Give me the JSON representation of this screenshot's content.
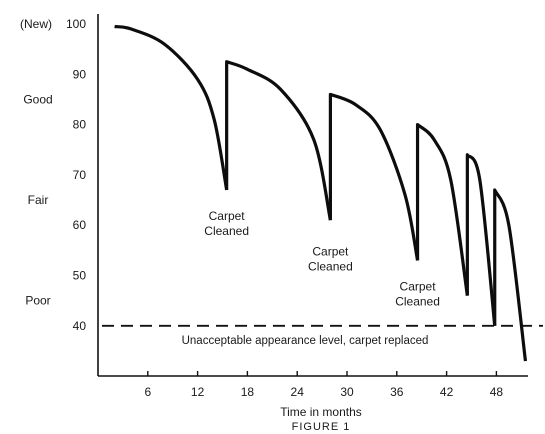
{
  "chart_data": {
    "type": "line",
    "title": "",
    "caption": "FIGURE 1",
    "xlabel": "Time in months",
    "ylabel": "",
    "xlim": [
      0,
      53
    ],
    "ylim": [
      32,
      100
    ],
    "x_ticks": [
      6,
      12,
      18,
      24,
      30,
      36,
      42,
      48
    ],
    "y_ticks": [
      40,
      50,
      60,
      70,
      80,
      90,
      100
    ],
    "y_top_prefix": "(New)",
    "quality_labels": [
      {
        "label": "Good",
        "y": 85
      },
      {
        "label": "Fair",
        "y": 65
      },
      {
        "label": "Poor",
        "y": 45
      }
    ],
    "series": [
      {
        "segments": [
          {
            "x": [
              2,
              4,
              8,
              12,
              14,
              15.5
            ],
            "y": [
              99.5,
              99,
              96,
              89,
              81,
              67
            ]
          },
          {
            "x": [
              15.5,
              15.5,
              18,
              22,
              26,
              28
            ],
            "y": [
              67,
              92.5,
              91,
              87,
              77,
              61
            ]
          },
          {
            "x": [
              28,
              28,
              31,
              34,
              37,
              38.5
            ],
            "y": [
              61,
              86,
              84,
              79,
              66,
              53
            ]
          },
          {
            "x": [
              38.5,
              38.5,
              40.5,
              42.5,
              44.5
            ],
            "y": [
              53,
              80,
              77,
              69,
              46
            ]
          },
          {
            "x": [
              44.5,
              44.5,
              46,
              47.8
            ],
            "y": [
              46,
              74,
              69,
              40
            ]
          },
          {
            "x": [
              47.8,
              47.8,
              49.5,
              51.5
            ],
            "y": [
              40,
              67,
              60,
              33
            ]
          }
        ]
      }
    ],
    "annotations": [
      {
        "text": [
          "Carpet",
          "Cleaned"
        ],
        "x": 15.5,
        "y": 65
      },
      {
        "text": [
          "Carpet",
          "Cleaned"
        ],
        "x": 28,
        "y": 58
      },
      {
        "text": [
          "Carpet",
          "Cleaned"
        ],
        "x": 38.5,
        "y": 51
      }
    ],
    "threshold": {
      "y": 40,
      "style": "dashed",
      "label": "Unacceptable appearance level, carpet replaced"
    }
  }
}
